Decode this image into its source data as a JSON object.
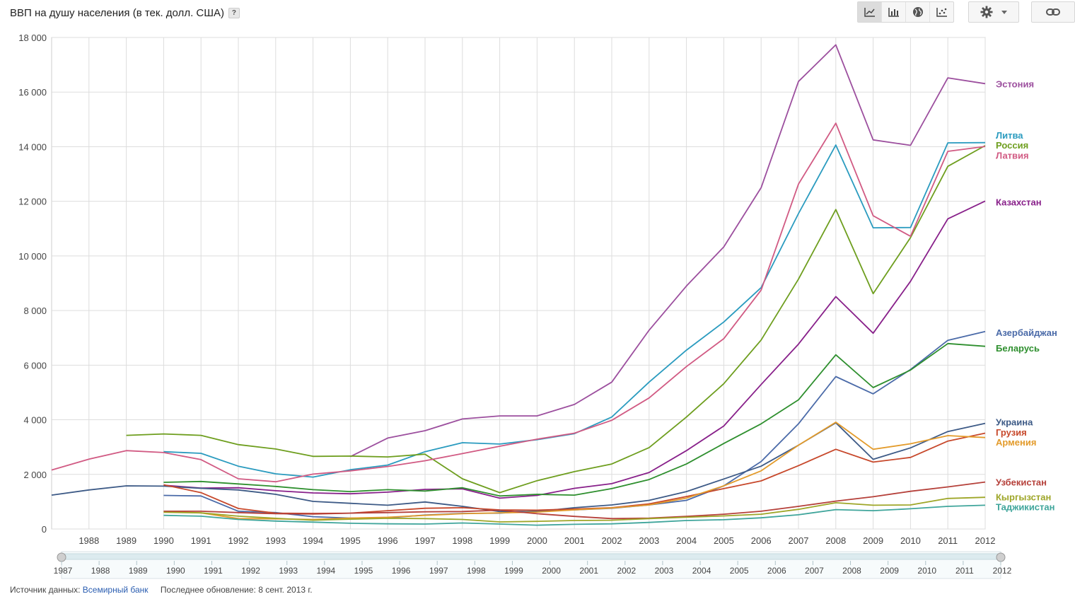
{
  "header": {
    "title": "ВВП на душу населения (в тек. долл. США)",
    "help": "?"
  },
  "toolbar": {
    "buttons": [
      {
        "icon": "line-chart-icon",
        "active": true
      },
      {
        "icon": "bar-chart-icon",
        "active": false
      },
      {
        "icon": "globe-map-icon",
        "active": false
      },
      {
        "icon": "scatter-chart-icon",
        "active": false
      }
    ],
    "settings_icon": "gear-icon",
    "link_icon": "link-icon"
  },
  "chart_data": {
    "type": "line",
    "title": "ВВП на душу населения (в тек. долл. США)",
    "x": [
      1987,
      1988,
      1989,
      1990,
      1991,
      1992,
      1993,
      1994,
      1995,
      1996,
      1997,
      1998,
      1999,
      2000,
      2001,
      2002,
      2003,
      2004,
      2005,
      2006,
      2007,
      2008,
      2009,
      2010,
      2011,
      2012
    ],
    "xlim": [
      1987,
      2012
    ],
    "ylim": [
      0,
      18000
    ],
    "x_tick_labels": [
      "1988",
      "1989",
      "1990",
      "1991",
      "1992",
      "1993",
      "1994",
      "1995",
      "1996",
      "1997",
      "1998",
      "1999",
      "2000",
      "2001",
      "2002",
      "2003",
      "2004",
      "2005",
      "2006",
      "2007",
      "2008",
      "2009",
      "2010",
      "2011",
      "2012"
    ],
    "y_ticks": [
      0,
      2000,
      4000,
      6000,
      8000,
      10000,
      12000,
      14000,
      16000,
      18000
    ],
    "y_tick_labels": [
      "0",
      "2 000",
      "4 000",
      "6 000",
      "8 000",
      "10 000",
      "12 000",
      "14 000",
      "16 000",
      "18 000"
    ],
    "grid": true,
    "legend": "right",
    "series": [
      {
        "name": "Эстония",
        "color": "#9c4f9e",
        "label_y": 16300,
        "values": [
          null,
          null,
          null,
          null,
          null,
          null,
          null,
          null,
          2650,
          3330,
          3600,
          4030,
          4140,
          4140,
          4560,
          5380,
          7280,
          8900,
          10330,
          12500,
          16390,
          17730,
          14250,
          14050,
          16520,
          16310
        ]
      },
      {
        "name": "Литва",
        "color": "#2a9bbf",
        "label_y": 14420,
        "values": [
          null,
          null,
          null,
          2830,
          2770,
          2300,
          2020,
          1900,
          2170,
          2340,
          2830,
          3160,
          3110,
          3270,
          3490,
          4100,
          5380,
          6550,
          7580,
          8840,
          11550,
          14060,
          11030,
          11040,
          14140,
          14150
        ]
      },
      {
        "name": "Россия",
        "color": "#6e9e1e",
        "label_y": 14060,
        "values": [
          null,
          null,
          3430,
          3480,
          3430,
          3090,
          2930,
          2660,
          2670,
          2640,
          2740,
          1840,
          1330,
          1770,
          2100,
          2380,
          2980,
          4100,
          5320,
          6920,
          9150,
          11700,
          8620,
          10670,
          13280,
          14040
        ]
      },
      {
        "name": "Латвия",
        "color": "#d15a83",
        "label_y": 13690,
        "values": [
          2160,
          2560,
          2870,
          2800,
          2540,
          1840,
          1730,
          2010,
          2130,
          2290,
          2500,
          2760,
          3030,
          3290,
          3510,
          3980,
          4800,
          5950,
          6970,
          8750,
          12630,
          14860,
          11470,
          10720,
          13830,
          14010
        ]
      },
      {
        "name": "Казахстан",
        "color": "#88208a",
        "label_y": 11980,
        "values": [
          null,
          null,
          null,
          1600,
          1500,
          1510,
          1400,
          1320,
          1290,
          1350,
          1450,
          1470,
          1130,
          1230,
          1490,
          1660,
          2070,
          2870,
          3770,
          5290,
          6770,
          8510,
          7170,
          9070,
          11360,
          12010
        ]
      },
      {
        "name": "Азербайджан",
        "color": "#4a6aa8",
        "label_y": 7200,
        "values": [
          null,
          null,
          null,
          1230,
          1210,
          650,
          600,
          450,
          400,
          410,
          510,
          570,
          580,
          660,
          700,
          760,
          880,
          1050,
          1580,
          2470,
          3850,
          5580,
          4950,
          5840,
          6910,
          7230
        ]
      },
      {
        "name": "Беларусь",
        "color": "#2e8f2e",
        "label_y": 6630,
        "values": [
          null,
          null,
          null,
          1710,
          1740,
          1650,
          1560,
          1440,
          1370,
          1440,
          1390,
          1510,
          1210,
          1270,
          1240,
          1480,
          1810,
          2380,
          3130,
          3850,
          4730,
          6380,
          5180,
          5820,
          6790,
          6690
        ]
      },
      {
        "name": "Украина",
        "color": "#3d5a86",
        "label_y": 3920,
        "values": [
          1240,
          1430,
          1580,
          1570,
          1490,
          1430,
          1270,
          1010,
          940,
          870,
          990,
          830,
          640,
          640,
          780,
          880,
          1050,
          1370,
          1830,
          2300,
          3070,
          3890,
          2550,
          2970,
          3570,
          3870
        ]
      },
      {
        "name": "Грузия",
        "color": "#c7482b",
        "label_y": 3550,
        "values": [
          null,
          null,
          null,
          1620,
          1330,
          750,
          580,
          570,
          580,
          670,
          760,
          780,
          700,
          690,
          730,
          780,
          920,
          1190,
          1480,
          1760,
          2320,
          2920,
          2450,
          2620,
          3220,
          3510
        ]
      },
      {
        "name": "Армения",
        "color": "#e39b2b",
        "label_y": 3180,
        "values": [
          null,
          null,
          null,
          640,
          590,
          380,
          370,
          350,
          400,
          430,
          500,
          560,
          590,
          620,
          700,
          770,
          880,
          1130,
          1580,
          2130,
          3070,
          3910,
          2920,
          3120,
          3420,
          3350
        ]
      },
      {
        "name": "Узбекистан",
        "color": "#b5403a",
        "label_y": 1720,
        "values": [
          null,
          null,
          null,
          650,
          650,
          600,
          560,
          550,
          580,
          600,
          630,
          640,
          690,
          560,
          460,
          380,
          400,
          460,
          540,
          650,
          830,
          1020,
          1180,
          1380,
          1540,
          1720
        ]
      },
      {
        "name": "Кыргызстан",
        "color": "#9ea628",
        "label_y": 1180,
        "values": [
          null,
          null,
          null,
          610,
          590,
          470,
          390,
          320,
          360,
          390,
          380,
          350,
          260,
          280,
          310,
          320,
          380,
          430,
          480,
          540,
          720,
          960,
          870,
          880,
          1120,
          1160
        ]
      },
      {
        "name": "Таджикистан",
        "color": "#3fa59b",
        "label_y": 810,
        "values": [
          null,
          null,
          null,
          500,
          470,
          350,
          290,
          250,
          210,
          190,
          180,
          220,
          180,
          140,
          170,
          190,
          240,
          310,
          340,
          410,
          520,
          710,
          670,
          740,
          830,
          870
        ]
      }
    ]
  },
  "navigator": {
    "labels": [
      "1987",
      "1988",
      "1989",
      "1990",
      "1991",
      "1992",
      "1993",
      "1994",
      "1995",
      "1996",
      "1997",
      "1998",
      "1999",
      "2000",
      "2001",
      "2002",
      "2003",
      "2004",
      "2005",
      "2006",
      "2007",
      "2008",
      "2009",
      "2010",
      "2011",
      "2012"
    ]
  },
  "footer": {
    "source_label": "Источник данных:",
    "source_link": "Всемирный банк",
    "updated": "Последнее обновление: 8 сент. 2013 г."
  }
}
